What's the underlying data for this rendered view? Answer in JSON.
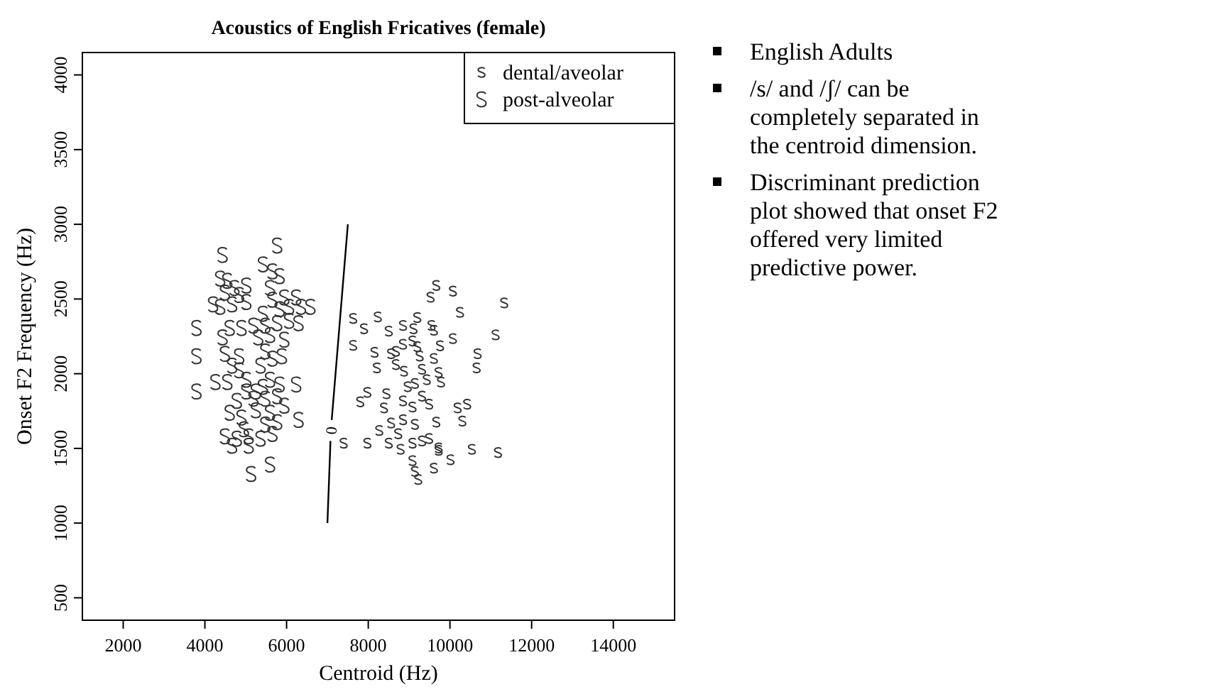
{
  "chart_data": {
    "type": "scatter",
    "title": "Acoustics of English Fricatives (female)",
    "xlabel": "Centroid (Hz)",
    "ylabel": "Onset F2 Frequency (Hz)",
    "xlim": [
      1000,
      15500
    ],
    "ylim": [
      350,
      4150
    ],
    "xticks": [
      2000,
      4000,
      6000,
      8000,
      10000,
      12000,
      14000
    ],
    "yticks": [
      500,
      1000,
      1500,
      2000,
      2500,
      3000,
      3500,
      4000
    ],
    "grid": false,
    "legend": "top right",
    "series": [
      {
        "name": "dental/aveolar",
        "color": "#333333",
        "x": [
          9663,
          9523,
          10070,
          11326,
          7628,
          7895,
          8232,
          8500,
          8849,
          9105,
          9198,
          9547,
          9605,
          10244,
          11116,
          7628,
          8151,
          8558,
          8849,
          9081,
          9198,
          9756,
          10070,
          10675,
          10651,
          8209,
          8674,
          8872,
          9314,
          9605,
          9721,
          9140,
          9430,
          9779,
          7802,
          7976,
          8442,
          8384,
          8849,
          9081,
          9314,
          9488,
          10186,
          10419,
          10302,
          9663,
          8558,
          8849,
          9140,
          8267,
          8732,
          7395,
          7976,
          8500,
          8790,
          9081,
          9314,
          9488,
          9721,
          10535,
          11174,
          9081,
          9140,
          9221,
          9605,
          10012,
          9721,
          8965,
          9256,
          8674
        ],
        "values": [
          2591,
          2512,
          2553,
          2474,
          2370,
          2301,
          2380,
          2285,
          2323,
          2301,
          2376,
          2323,
          2291,
          2411,
          2260,
          2190,
          2143,
          2134,
          2197,
          2219,
          2181,
          2187,
          2235,
          2134,
          2039,
          2039,
          2061,
          2017,
          2030,
          2102,
          2008,
          1935,
          1960,
          1944,
          1812,
          1875,
          1866,
          1771,
          1818,
          1777,
          1850,
          1796,
          1771,
          1796,
          1683,
          1676,
          1670,
          1692,
          1661,
          1620,
          1598,
          1535,
          1535,
          1535,
          1494,
          1535,
          1550,
          1566,
          1487,
          1494,
          1472,
          1418,
          1346,
          1292,
          1368,
          1424,
          1503,
          1913,
          2118,
          2150
        ]
      },
      {
        "name": "post-alveolar",
        "color": "#333333",
        "x": [
          4430,
          5768,
          5419,
          5651,
          5826,
          4547,
          4721,
          5012,
          4488,
          4837,
          5593,
          4198,
          4372,
          4663,
          5012,
          5651,
          5942,
          6233,
          6582,
          6059,
          6349,
          3791,
          4605,
          4430,
          4895,
          5186,
          5477,
          5768,
          6059,
          6291,
          5303,
          5593,
          5942,
          3791,
          4488,
          4837,
          5477,
          5651,
          5884,
          4663,
          4837,
          3791,
          4256,
          4547,
          5012,
          5244,
          5593,
          5826,
          6233,
          4779,
          5186,
          5477,
          5768,
          5942,
          6291,
          4605,
          4895,
          5244,
          5593,
          5768,
          4488,
          4779,
          5070,
          5360,
          5651,
          4663,
          5070,
          5593,
          5128,
          4372,
          5419,
          5826,
          5361,
          5012,
          5419,
          4953,
          5477
        ],
        "values": [
          2795,
          2858,
          2732,
          2685,
          2653,
          2622,
          2574,
          2590,
          2543,
          2527,
          2574,
          2464,
          2448,
          2464,
          2480,
          2495,
          2511,
          2511,
          2448,
          2448,
          2448,
          2306,
          2306,
          2243,
          2306,
          2322,
          2322,
          2338,
          2354,
          2338,
          2243,
          2259,
          2228,
          2117,
          2133,
          2117,
          2149,
          2101,
          2117,
          2054,
          2023,
          1881,
          1944,
          1944,
          1960,
          1881,
          1960,
          1928,
          1928,
          1818,
          1833,
          1833,
          1849,
          1786,
          1691,
          1739,
          1707,
          1755,
          1739,
          1676,
          1581,
          1565,
          1581,
          1565,
          1597,
          1518,
          1518,
          1392,
          1329,
          2637,
          2401,
          2432,
          2054,
          1881,
          1912,
          1628,
          1660
        ]
      },
      {
        "type": "line",
        "color": "#000000",
        "x": [
          7000,
          7075,
          7090,
          7105,
          7500
        ],
        "values": [
          1000,
          1550,
          null,
          1690,
          3000
        ]
      }
    ],
    "annotations": [
      "0",
      "English Adults",
      "/s/ and /ʃ/ can be completely separated in the centroid dimension.",
      "Discriminant prediction plot showed that onset F2 offered very limited predictive power."
    ]
  }
}
